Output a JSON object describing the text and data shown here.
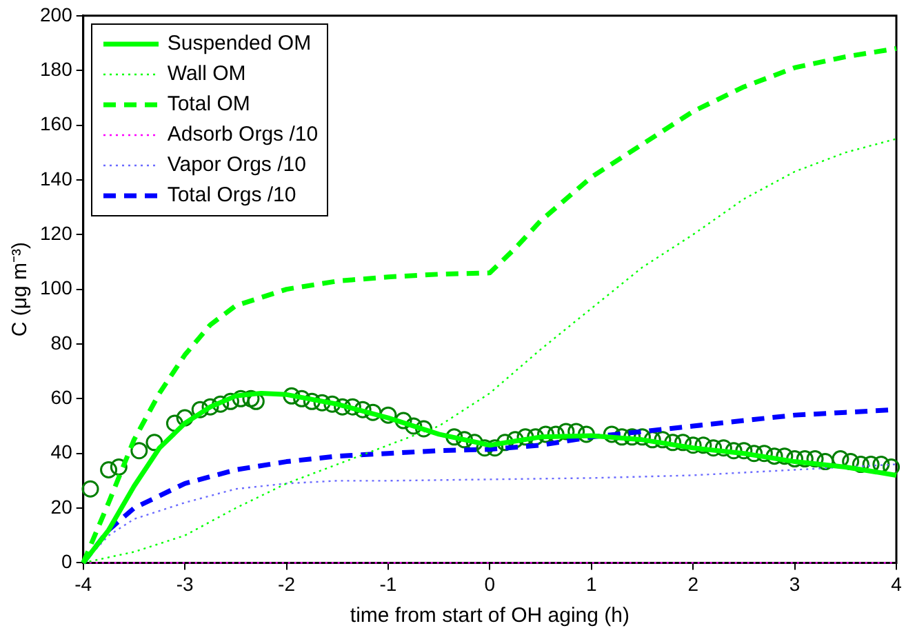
{
  "chart_data": {
    "type": "line",
    "xlabel": "time from start of OH aging (h)",
    "ylabel": "C (μg m⁻³)",
    "xlim": [
      -4,
      4
    ],
    "xticks": [
      -4,
      -3,
      -2,
      -1,
      0,
      1,
      2,
      3,
      4
    ],
    "ylim": [
      0,
      200
    ],
    "yticks": [
      0,
      20,
      40,
      60,
      80,
      100,
      120,
      140,
      160,
      180,
      200
    ],
    "legend": "top left",
    "series": [
      {
        "name": "Suspended OM",
        "color": "#00ff00",
        "line_style": "solid",
        "x": [
          -4,
          -3.75,
          -3.5,
          -3.25,
          -3,
          -2.75,
          -2.5,
          -2.25,
          -2,
          -1.5,
          -1,
          -0.5,
          0,
          0.5,
          1,
          1.5,
          2,
          2.5,
          3,
          3.5,
          4
        ],
        "values": [
          0,
          12,
          28,
          42,
          51,
          57,
          61,
          62,
          61.5,
          58,
          53,
          47,
          43,
          46,
          46.5,
          45,
          42,
          40,
          37,
          35,
          32
        ]
      },
      {
        "name": "Wall OM",
        "color": "#00ff00",
        "line_style": "dotted",
        "x": [
          -4,
          -3.75,
          -3.5,
          -3,
          -2.5,
          -2,
          -1.5,
          -1,
          -0.5,
          0,
          0.5,
          1,
          1.5,
          2,
          2.5,
          3,
          3.5,
          4
        ],
        "values": [
          0,
          2,
          4,
          10,
          20,
          29,
          36,
          43,
          50,
          62,
          78,
          93,
          108,
          120,
          133,
          143,
          150,
          155
        ]
      },
      {
        "name": "Total OM",
        "color": "#00ff00",
        "line_style": "dashed",
        "x": [
          -4,
          -3.75,
          -3.5,
          -3.25,
          -3,
          -2.75,
          -2.5,
          -2,
          -1.5,
          -1,
          -0.5,
          0,
          0.25,
          0.5,
          1,
          1.5,
          2,
          2.5,
          3,
          3.5,
          4
        ],
        "values": [
          0,
          22,
          45,
          62,
          76,
          87,
          94,
          100,
          103,
          104.5,
          105.5,
          106,
          115,
          125,
          141,
          153,
          165,
          174,
          181,
          185,
          188
        ]
      },
      {
        "name": "Adsorb Orgs /10",
        "color": "#ff00ff",
        "line_style": "dotted",
        "x": [
          -4,
          4
        ],
        "values": [
          0,
          0
        ]
      },
      {
        "name": "Vapor Orgs /10",
        "color": "#6b6bff",
        "line_style": "dotted",
        "x": [
          -4,
          -3.75,
          -3.5,
          -3,
          -2.5,
          -2,
          -1.5,
          -1,
          0,
          1,
          2,
          3,
          4
        ],
        "values": [
          0,
          10,
          16,
          22,
          27,
          29,
          30,
          30,
          30.5,
          31,
          32,
          34,
          36
        ]
      },
      {
        "name": "Total Orgs /10",
        "color": "#0000ff",
        "line_style": "dashed",
        "x": [
          -4,
          -3.75,
          -3.5,
          -3,
          -2.5,
          -2,
          -1.5,
          -1,
          -0.5,
          0,
          0.5,
          1,
          1.5,
          2,
          2.5,
          3,
          3.5,
          4
        ],
        "values": [
          0,
          12,
          20,
          29,
          34,
          37,
          39,
          40,
          41,
          41.5,
          43,
          46,
          48,
          50,
          52,
          54,
          55,
          56
        ]
      },
      {
        "type": "scatter",
        "marker": "circle",
        "color": "#007f00",
        "x": [
          -3.93,
          -3.75,
          -3.65,
          -3.45,
          -3.3,
          -3.1,
          -3.0,
          -2.85,
          -2.75,
          -2.65,
          -2.55,
          -2.45,
          -2.35,
          -2.3,
          -1.95,
          -1.85,
          -1.75,
          -1.65,
          -1.55,
          -1.45,
          -1.35,
          -1.25,
          -1.15,
          -1.0,
          -0.85,
          -0.75,
          -0.65,
          -0.35,
          -0.25,
          -0.15,
          -0.05,
          0.05,
          0.15,
          0.25,
          0.35,
          0.45,
          0.55,
          0.65,
          0.75,
          0.85,
          0.95,
          1.2,
          1.3,
          1.4,
          1.5,
          1.6,
          1.7,
          1.8,
          1.9,
          2.0,
          2.1,
          2.2,
          2.3,
          2.4,
          2.5,
          2.6,
          2.7,
          2.8,
          2.9,
          3.0,
          3.1,
          3.2,
          3.3,
          3.45,
          3.55,
          3.65,
          3.75,
          3.85,
          3.95
        ],
        "values": [
          27,
          34,
          35,
          41,
          44,
          51,
          53,
          56,
          57,
          58,
          59,
          60,
          60,
          59,
          61,
          60,
          59,
          58.5,
          58,
          57,
          57,
          56,
          55,
          54,
          52,
          50,
          49,
          46,
          45,
          44,
          42,
          42,
          44,
          45,
          46,
          46,
          47,
          47,
          48,
          48,
          47,
          47,
          46,
          46,
          46,
          45,
          45,
          44,
          44,
          43,
          43,
          42,
          42,
          41,
          41,
          40,
          40,
          39,
          39,
          38,
          38,
          38,
          37,
          38,
          37,
          36,
          36,
          36,
          35
        ]
      }
    ]
  }
}
